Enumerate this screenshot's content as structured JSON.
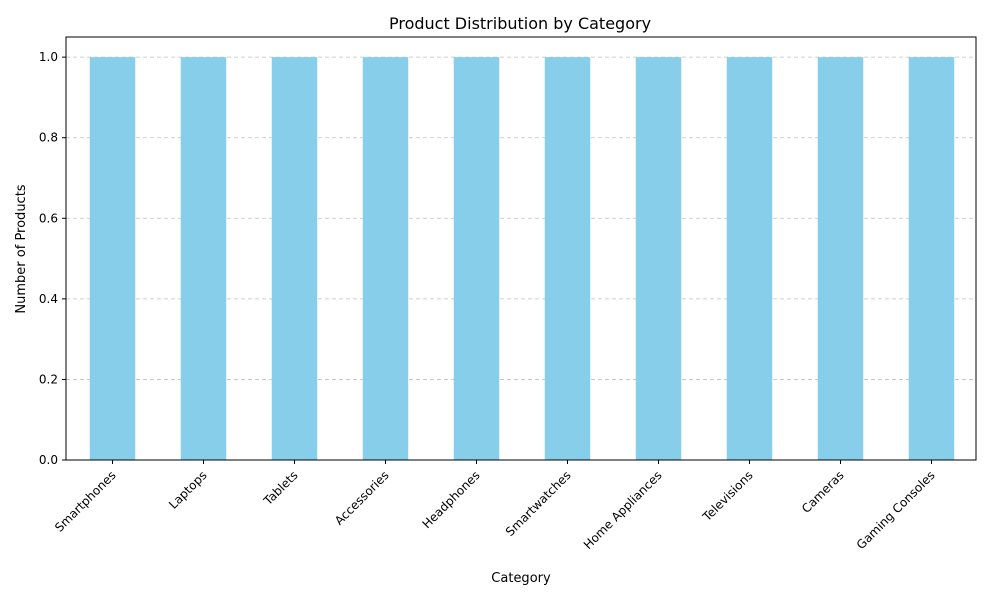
{
  "chart_data": {
    "type": "bar",
    "title": "Product Distribution by Category",
    "xlabel": "Category",
    "ylabel": "Number of Products",
    "categories": [
      "Smartphones",
      "Laptops",
      "Tablets",
      "Accessories",
      "Headphones",
      "Smartwatches",
      "Home Appliances",
      "Televisions",
      "Cameras",
      "Gaming Consoles"
    ],
    "values": [
      1,
      1,
      1,
      1,
      1,
      1,
      1,
      1,
      1,
      1
    ],
    "ylim": [
      0,
      1.05
    ],
    "yticks": [
      0.0,
      0.2,
      0.4,
      0.6,
      0.8,
      1.0
    ],
    "ytick_labels": [
      "0.0",
      "0.2",
      "0.4",
      "0.6",
      "0.8",
      "1.0"
    ],
    "grid": "y-dashed",
    "bar_color": "#87ceeb",
    "grid_color": "#c0c0c0",
    "legend": "none"
  }
}
